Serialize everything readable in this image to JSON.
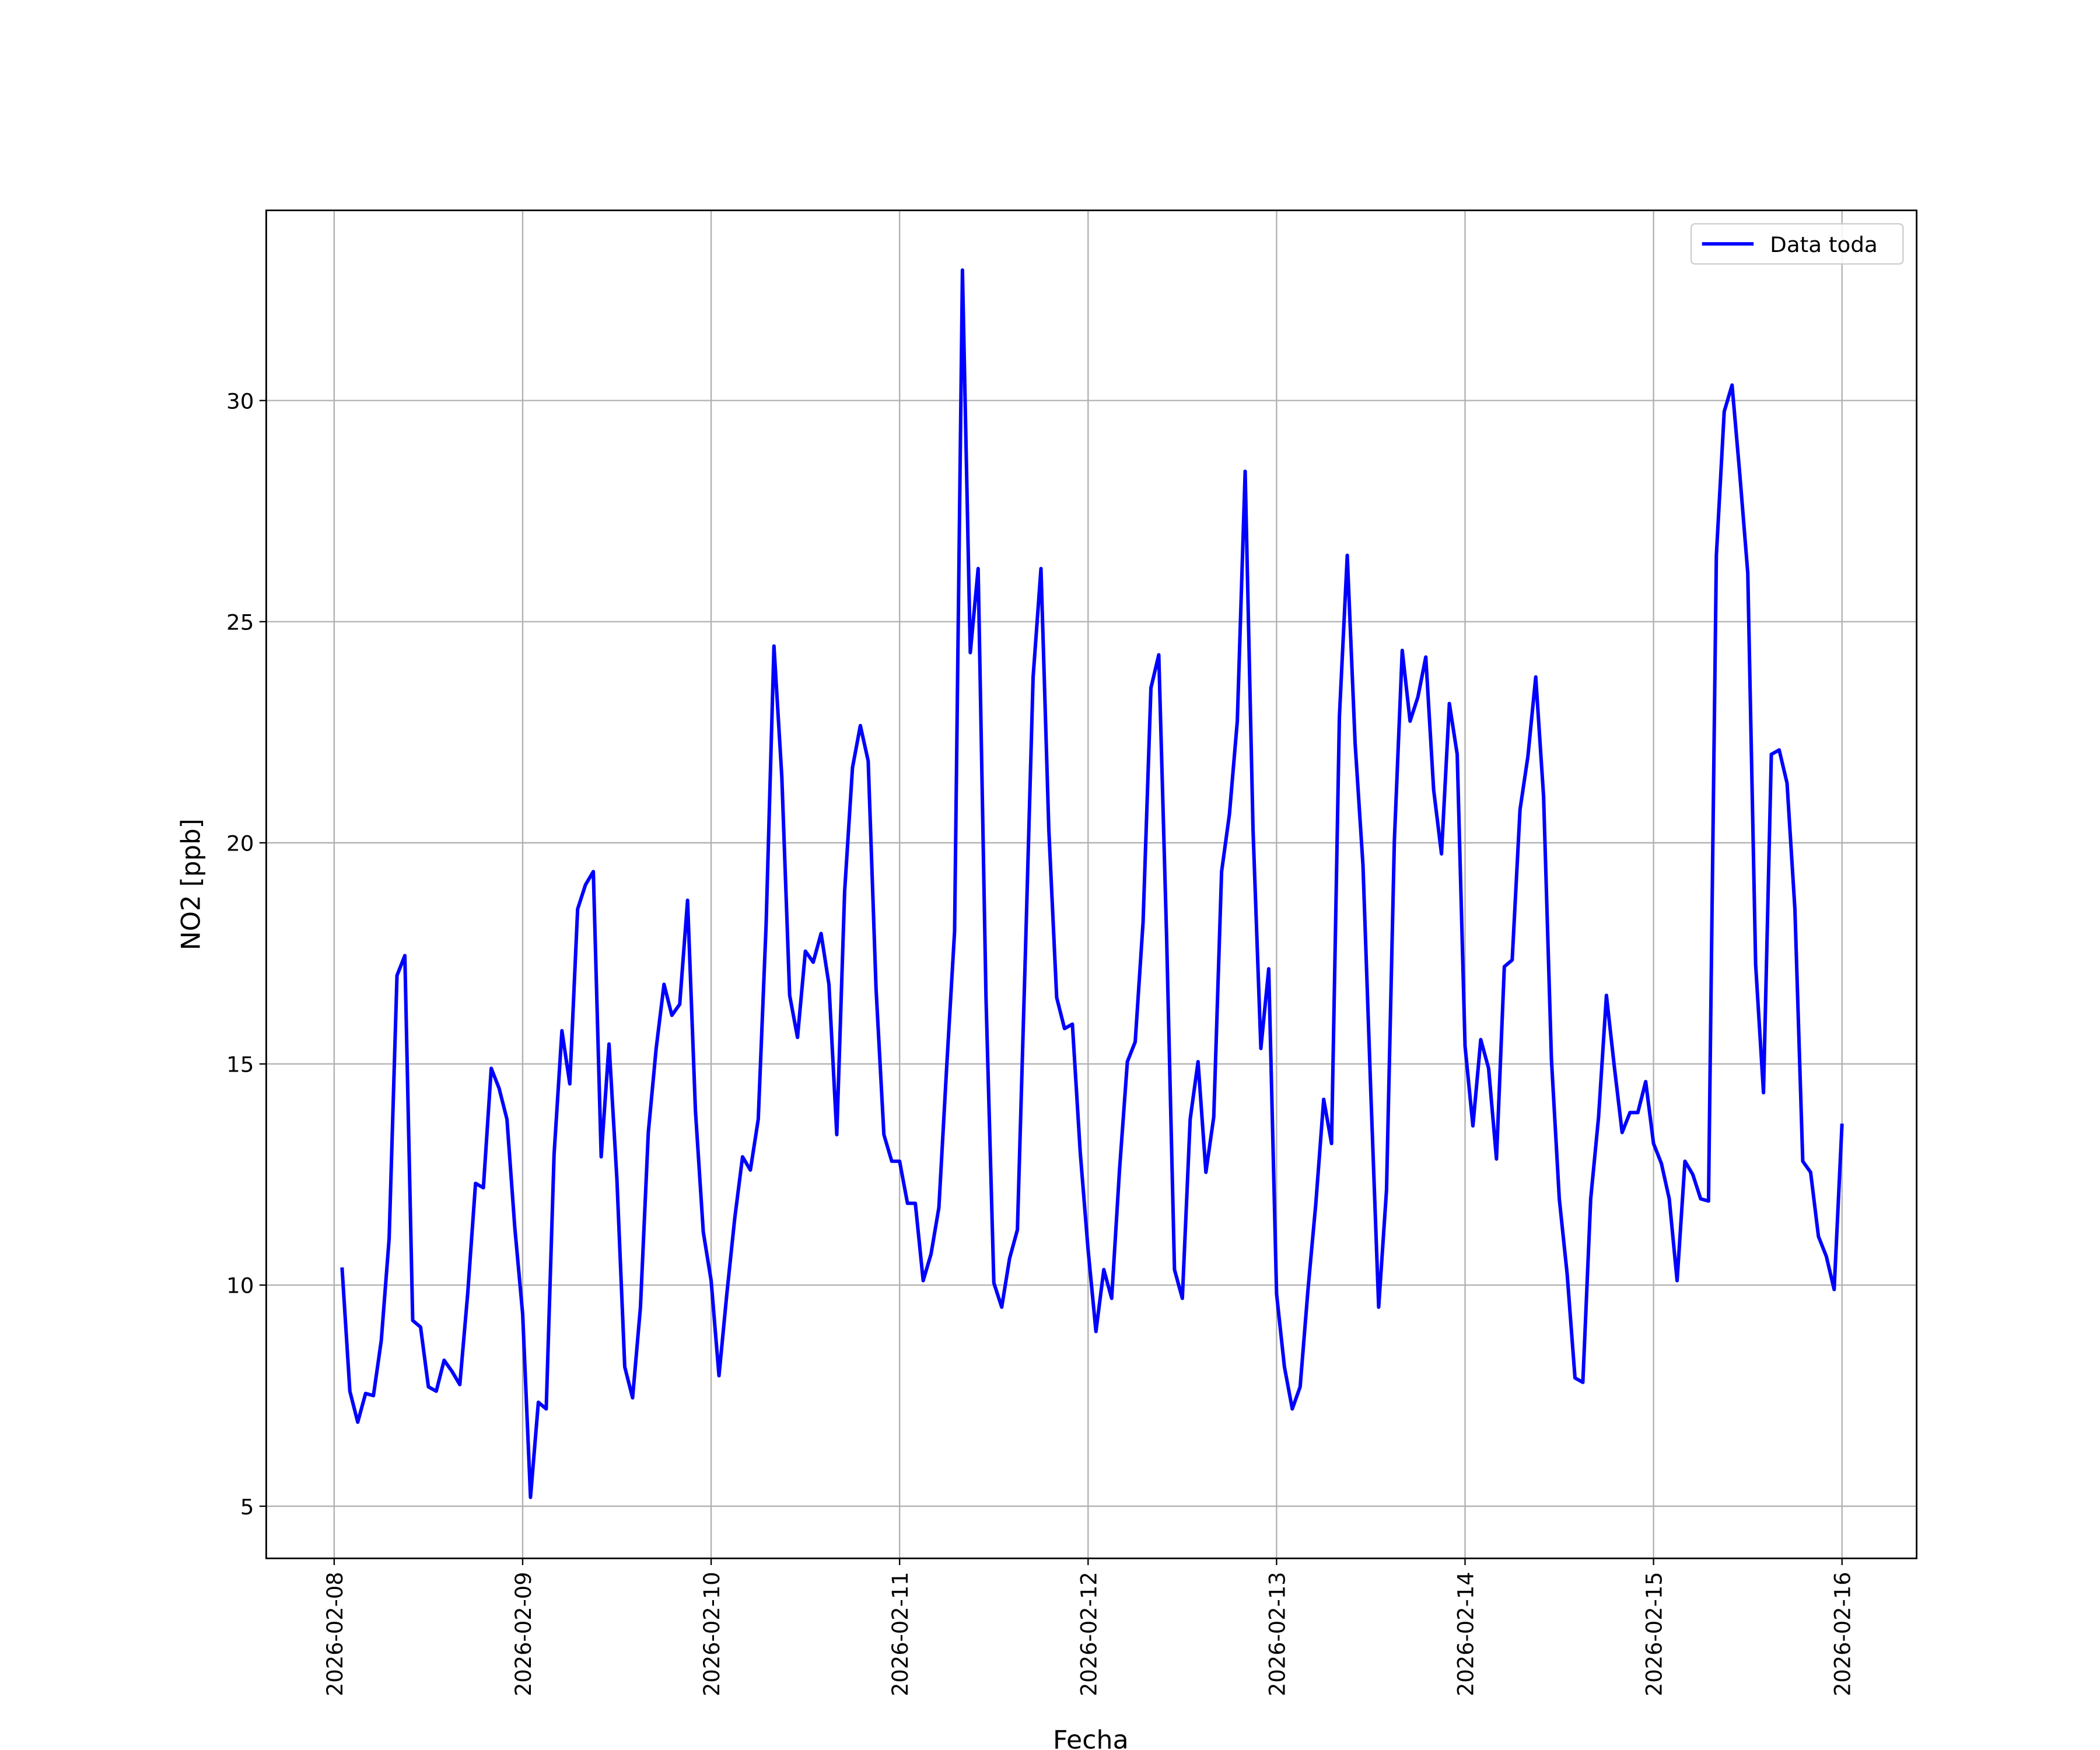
{
  "chart_data": {
    "type": "line",
    "xlabel": "Fecha",
    "ylabel": "NO2 [ppb]",
    "xlim": [
      "2026-02-07 15:21",
      "2026-02-16 09:30"
    ],
    "xticks": [
      "2026-02-08",
      "2026-02-09",
      "2026-02-10",
      "2026-02-11",
      "2026-02-12",
      "2026-02-13",
      "2026-02-14",
      "2026-02-15",
      "2026-02-16"
    ],
    "ylim": [
      3.82,
      34.3
    ],
    "yticks": [
      5,
      10,
      15,
      20,
      25,
      30
    ],
    "grid": true,
    "legend": "upper right",
    "x": [
      "2026-02-08 01:00",
      "2026-02-08 02:00",
      "2026-02-08 03:00",
      "2026-02-08 04:00",
      "2026-02-08 05:00",
      "2026-02-08 06:00",
      "2026-02-08 07:00",
      "2026-02-08 08:00",
      "2026-02-08 09:00",
      "2026-02-08 10:00",
      "2026-02-08 11:00",
      "2026-02-08 12:00",
      "2026-02-08 13:00",
      "2026-02-08 14:00",
      "2026-02-08 15:00",
      "2026-02-08 16:00",
      "2026-02-08 17:00",
      "2026-02-08 18:00",
      "2026-02-08 19:00",
      "2026-02-08 20:00",
      "2026-02-08 21:00",
      "2026-02-08 22:00",
      "2026-02-08 23:00",
      "2026-02-09 00:00",
      "2026-02-09 01:00",
      "2026-02-09 02:00",
      "2026-02-09 03:00",
      "2026-02-09 04:00",
      "2026-02-09 05:00",
      "2026-02-09 06:00",
      "2026-02-09 07:00",
      "2026-02-09 08:00",
      "2026-02-09 09:00",
      "2026-02-09 10:00",
      "2026-02-09 11:00",
      "2026-02-09 12:00",
      "2026-02-09 13:00",
      "2026-02-09 14:00",
      "2026-02-09 15:00",
      "2026-02-09 16:00",
      "2026-02-09 17:00",
      "2026-02-09 18:00",
      "2026-02-09 19:00",
      "2026-02-09 20:00",
      "2026-02-09 21:00",
      "2026-02-09 22:00",
      "2026-02-09 23:00",
      "2026-02-10 00:00",
      "2026-02-10 01:00",
      "2026-02-10 02:00",
      "2026-02-10 03:00",
      "2026-02-10 04:00",
      "2026-02-10 05:00",
      "2026-02-10 06:00",
      "2026-02-10 07:00",
      "2026-02-10 08:00",
      "2026-02-10 09:00",
      "2026-02-10 10:00",
      "2026-02-10 11:00",
      "2026-02-10 12:00",
      "2026-02-10 13:00",
      "2026-02-10 14:00",
      "2026-02-10 15:00",
      "2026-02-10 16:00",
      "2026-02-10 17:00",
      "2026-02-10 18:00",
      "2026-02-10 19:00",
      "2026-02-10 20:00",
      "2026-02-10 21:00",
      "2026-02-10 22:00",
      "2026-02-10 23:00",
      "2026-02-11 00:00",
      "2026-02-11 01:00",
      "2026-02-11 02:00",
      "2026-02-11 03:00",
      "2026-02-11 04:00",
      "2026-02-11 05:00",
      "2026-02-11 06:00",
      "2026-02-11 07:00",
      "2026-02-11 08:00",
      "2026-02-11 09:00",
      "2026-02-11 10:00",
      "2026-02-11 11:00",
      "2026-02-11 12:00",
      "2026-02-11 13:00",
      "2026-02-11 14:00",
      "2026-02-11 15:00",
      "2026-02-11 16:00",
      "2026-02-11 17:00",
      "2026-02-11 18:00",
      "2026-02-11 19:00",
      "2026-02-11 20:00",
      "2026-02-11 21:00",
      "2026-02-11 22:00",
      "2026-02-11 23:00",
      "2026-02-12 00:00",
      "2026-02-12 01:00",
      "2026-02-12 02:00",
      "2026-02-12 03:00",
      "2026-02-12 04:00",
      "2026-02-12 05:00",
      "2026-02-12 06:00",
      "2026-02-12 07:00",
      "2026-02-12 08:00",
      "2026-02-12 09:00",
      "2026-02-12 10:00",
      "2026-02-12 11:00",
      "2026-02-12 12:00",
      "2026-02-12 13:00",
      "2026-02-12 14:00",
      "2026-02-12 15:00",
      "2026-02-12 16:00",
      "2026-02-12 17:00",
      "2026-02-12 18:00",
      "2026-02-12 19:00",
      "2026-02-12 20:00",
      "2026-02-12 21:00",
      "2026-02-12 22:00",
      "2026-02-12 23:00",
      "2026-02-13 00:00",
      "2026-02-13 01:00",
      "2026-02-13 02:00",
      "2026-02-13 03:00",
      "2026-02-13 04:00",
      "2026-02-13 05:00",
      "2026-02-13 06:00",
      "2026-02-13 07:00",
      "2026-02-13 08:00",
      "2026-02-13 09:00",
      "2026-02-13 10:00",
      "2026-02-13 11:00",
      "2026-02-13 12:00",
      "2026-02-13 13:00",
      "2026-02-13 14:00",
      "2026-02-13 15:00",
      "2026-02-13 16:00",
      "2026-02-13 17:00",
      "2026-02-13 18:00",
      "2026-02-13 19:00",
      "2026-02-13 20:00",
      "2026-02-13 21:00",
      "2026-02-13 22:00",
      "2026-02-13 23:00",
      "2026-02-14 00:00",
      "2026-02-14 01:00",
      "2026-02-14 02:00",
      "2026-02-14 03:00",
      "2026-02-14 04:00",
      "2026-02-14 05:00",
      "2026-02-14 06:00",
      "2026-02-14 07:00",
      "2026-02-14 08:00",
      "2026-02-14 09:00",
      "2026-02-14 10:00",
      "2026-02-14 11:00",
      "2026-02-14 12:00",
      "2026-02-14 13:00",
      "2026-02-14 14:00",
      "2026-02-14 15:00",
      "2026-02-14 16:00",
      "2026-02-14 17:00",
      "2026-02-14 18:00",
      "2026-02-14 19:00",
      "2026-02-14 20:00",
      "2026-02-14 21:00",
      "2026-02-14 22:00",
      "2026-02-14 23:00",
      "2026-02-15 00:00",
      "2026-02-15 01:00",
      "2026-02-15 02:00",
      "2026-02-15 03:00",
      "2026-02-15 04:00",
      "2026-02-15 05:00",
      "2026-02-15 06:00",
      "2026-02-15 07:00",
      "2026-02-15 08:00",
      "2026-02-15 09:00",
      "2026-02-15 10:00",
      "2026-02-15 11:00",
      "2026-02-15 12:00",
      "2026-02-15 13:00",
      "2026-02-15 14:00",
      "2026-02-15 15:00",
      "2026-02-15 16:00",
      "2026-02-15 17:00",
      "2026-02-15 18:00",
      "2026-02-15 19:00",
      "2026-02-15 20:00",
      "2026-02-15 21:00",
      "2026-02-15 22:00",
      "2026-02-15 23:00",
      "2026-02-16 00:00"
    ],
    "series": [
      {
        "name": "Data toda",
        "color": "#0000ff",
        "values": [
          10.4,
          7.6,
          6.9,
          7.55,
          7.5,
          8.75,
          11.05,
          17.0,
          17.45,
          9.2,
          9.05,
          7.7,
          7.6,
          8.3,
          8.05,
          7.75,
          9.8,
          12.3,
          12.2,
          14.9,
          14.45,
          13.75,
          11.3,
          9.35,
          5.2,
          7.35,
          7.2,
          12.95,
          15.75,
          14.55,
          18.5,
          19.05,
          19.35,
          12.9,
          15.45,
          12.4,
          8.15,
          7.45,
          9.5,
          13.45,
          15.35,
          16.8,
          16.1,
          16.35,
          18.7,
          13.95,
          11.2,
          10.1,
          7.95,
          9.8,
          11.5,
          12.9,
          12.6,
          13.75,
          18.15,
          24.45,
          21.5,
          16.55,
          15.6,
          17.55,
          17.3,
          17.95,
          16.8,
          13.4,
          18.9,
          21.7,
          22.65,
          21.85,
          16.7,
          13.4,
          12.8,
          12.8,
          11.85,
          11.85,
          10.1,
          10.7,
          11.75,
          14.95,
          18.0,
          32.95,
          24.3,
          26.2,
          16.5,
          10.05,
          9.5,
          10.6,
          11.25,
          17.4,
          23.75,
          26.2,
          20.3,
          16.5,
          15.8,
          15.9,
          13.0,
          10.8,
          8.95,
          10.35,
          9.7,
          12.6,
          15.05,
          15.5,
          18.2,
          23.5,
          24.25,
          17.85,
          10.35,
          9.7,
          13.75,
          15.05,
          12.55,
          13.8,
          19.35,
          20.65,
          22.75,
          28.4,
          20.3,
          15.35,
          17.15,
          9.8,
          8.15,
          7.2,
          7.7,
          9.9,
          11.85,
          14.2,
          13.2,
          22.85,
          26.5,
          22.25,
          19.5,
          14.35,
          9.5,
          12.15,
          20.05,
          24.35,
          22.75,
          23.3,
          24.2,
          21.2,
          19.75,
          23.15,
          22.0,
          15.4,
          13.6,
          15.55,
          14.9,
          12.85,
          17.2,
          17.35,
          20.75,
          21.95,
          23.75,
          21.05,
          15.1,
          11.95,
          10.25,
          7.9,
          7.8,
          11.95,
          13.8,
          16.55,
          14.95,
          13.45,
          13.9,
          13.9,
          14.6,
          13.2,
          12.75,
          11.95,
          10.1,
          12.8,
          12.5,
          11.95,
          11.9,
          26.5,
          29.75,
          30.35,
          28.3,
          26.1,
          17.25,
          14.35,
          22.0,
          22.1,
          21.35,
          18.5,
          12.8,
          12.55,
          11.1,
          10.65,
          9.9,
          13.65
        ]
      }
    ]
  }
}
